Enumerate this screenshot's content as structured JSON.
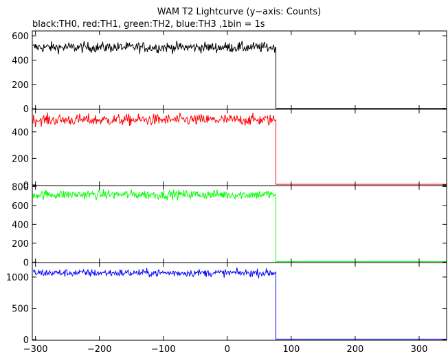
{
  "chart_data": {
    "type": "line",
    "title": "WAM T2 Lightcurve (y−axis: Counts)",
    "subtitle": "black:TH0, red:TH1, green:TH2, blue:TH3 ,1bin = 1s",
    "xlim": [
      -305,
      343
    ],
    "x_ticks": [
      -300,
      -200,
      -100,
      0,
      100,
      200,
      300
    ],
    "x_tick_labels": [
      "−300",
      "−200",
      "−100",
      "0",
      "100",
      "200",
      "300"
    ],
    "bin_seconds": 1,
    "drop_x": 76,
    "grid": false,
    "panels": [
      {
        "series": "TH0",
        "color": "#000000",
        "ylim": [
          -5,
          640
        ],
        "y_ticks": [
          0,
          200,
          400,
          600
        ],
        "y_tick_labels": [
          "0",
          "200",
          "400",
          "600"
        ],
        "level_before": 505,
        "noise": 22,
        "level_after": 3
      },
      {
        "series": "TH1",
        "color": "#ff0000",
        "ylim": [
          -5,
          570
        ],
        "y_ticks": [
          0,
          200,
          400
        ],
        "y_tick_labels": [
          "0",
          "200",
          "400"
        ],
        "level_before": 490,
        "noise": 22,
        "level_after": 5
      },
      {
        "series": "TH2",
        "color": "#00ff00",
        "ylim": [
          -5,
          810
        ],
        "y_ticks": [
          0,
          200,
          400,
          600,
          800
        ],
        "y_tick_labels": [
          "0",
          "200",
          "400",
          "600",
          "800"
        ],
        "level_before": 715,
        "noise": 25,
        "level_after": 5
      },
      {
        "series": "TH3",
        "color": "#0000ff",
        "ylim": [
          -10,
          1230
        ],
        "y_ticks": [
          0,
          500,
          1000
        ],
        "y_tick_labels": [
          "0",
          "500",
          "1000"
        ],
        "level_before": 1065,
        "noise": 30,
        "level_after": 8
      }
    ]
  }
}
